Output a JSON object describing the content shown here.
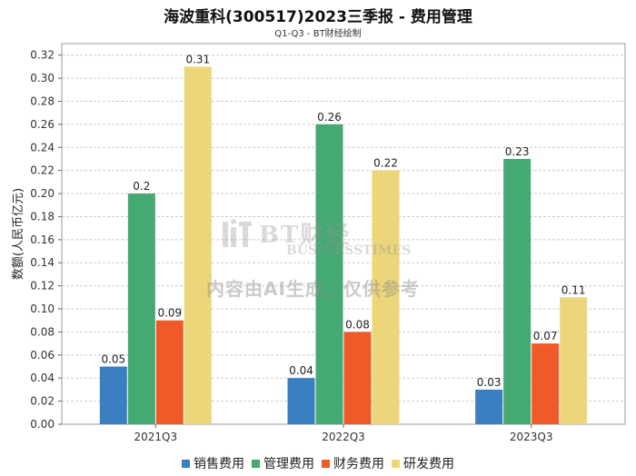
{
  "chart_data": {
    "type": "bar",
    "title": "海波重科(300517)2023三季报 - 费用管理",
    "subtitle": "Q1-Q3 - BT财经绘制",
    "ylabel": "数额(人民币亿元)",
    "xlabel": "",
    "categories": [
      "2021Q3",
      "2022Q3",
      "2023Q3"
    ],
    "ylim": [
      0,
      0.33
    ],
    "yticks": [
      "0.00",
      "0.02",
      "0.04",
      "0.06",
      "0.08",
      "0.10",
      "0.12",
      "0.14",
      "0.16",
      "0.18",
      "0.20",
      "0.22",
      "0.24",
      "0.26",
      "0.28",
      "0.30",
      "0.32"
    ],
    "grid": true,
    "legend_position": "bottom",
    "series": [
      {
        "name": "销售费用",
        "color": "#3a7fc1",
        "values": [
          0.05,
          0.04,
          0.03
        ],
        "labels": [
          "0.05",
          "0.04",
          "0.03"
        ]
      },
      {
        "name": "管理费用",
        "color": "#44a973",
        "values": [
          0.2,
          0.26,
          0.23
        ],
        "labels": [
          "0.2",
          "0.26",
          "0.23"
        ]
      },
      {
        "name": "财务费用",
        "color": "#f05a28",
        "values": [
          0.09,
          0.08,
          0.07
        ],
        "labels": [
          "0.09",
          "0.08",
          "0.07"
        ]
      },
      {
        "name": "研发费用",
        "color": "#edd67a",
        "values": [
          0.31,
          0.22,
          0.11
        ],
        "labels": [
          "0.31",
          "0.22",
          "0.11"
        ]
      }
    ]
  },
  "watermark": {
    "name": "BT财经",
    "sub": "BUSINESSTIMES",
    "note": "内容由AI生成，仅供参考"
  }
}
